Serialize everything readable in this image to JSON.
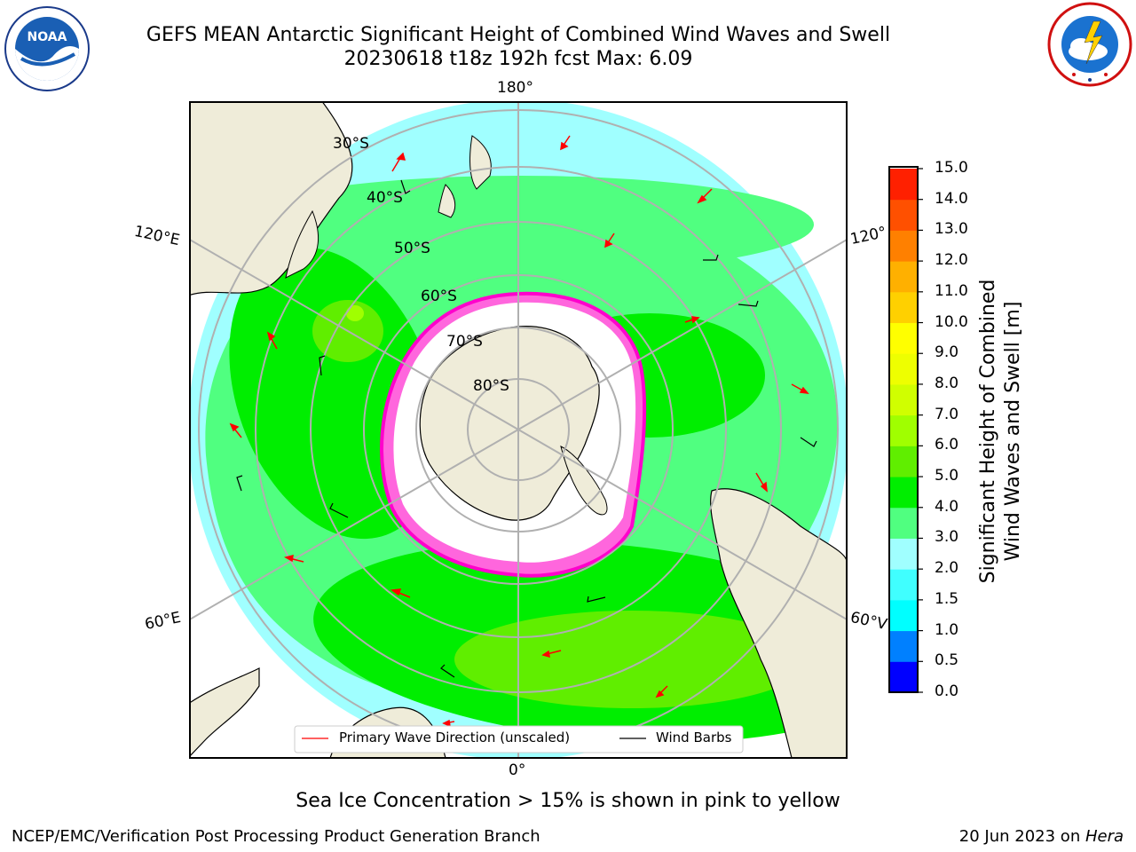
{
  "header": {
    "title_line1": "GEFS MEAN Antarctic Significant Height of Combined Wind Waves and Swell",
    "title_line2": "20230618 t18z 192h fcst   Max: 6.09"
  },
  "logos": {
    "left": {
      "text": "NOAA",
      "ring_text": "NATIONAL OCEANIC AND ATMOSPHERIC ADMINISTRATION · U.S. DEPARTMENT OF COMMERCE"
    },
    "right": {
      "ring_text": "NATIONAL WEATHER SERVICE"
    }
  },
  "map": {
    "lon_labels": {
      "top": "180°",
      "bottom": "0°",
      "upper_left": "120°E",
      "upper_right": "120°",
      "lower_left": "60°E",
      "lower_right": "60°V"
    },
    "lat_labels": [
      "30°S",
      "40°S",
      "50°S",
      "60°S",
      "70°S",
      "80°S"
    ],
    "legend": {
      "wave_direction": "Primary Wave Direction (unscaled)",
      "wind_barbs": "Wind Barbs"
    },
    "colors": {
      "land": "#efecd9",
      "ice": "#ffffff",
      "ocean_frame": "#ffffff"
    }
  },
  "colorbar": {
    "ticks": [
      "0.0",
      "0.5",
      "1.0",
      "1.5",
      "2.0",
      "3.0",
      "4.0",
      "5.0",
      "6.0",
      "7.0",
      "8.0",
      "9.0",
      "10.0",
      "11.0",
      "12.0",
      "13.0",
      "14.0",
      "15.0"
    ],
    "colors": [
      "#0000ff",
      "#0080ff",
      "#00ffff",
      "#40ffff",
      "#a0ffff",
      "#50ff80",
      "#00ee00",
      "#60ee00",
      "#a0ff00",
      "#d0ff00",
      "#eeff00",
      "#ffff00",
      "#ffd000",
      "#ffb000",
      "#ff8000",
      "#ff5000",
      "#ff2000"
    ],
    "label_line1": "Significant Height of Combined",
    "label_line2": "Wind Waves and Swell [m]"
  },
  "notes": {
    "ice": "Sea Ice Concentration > 15% is shown in pink to yellow"
  },
  "footer": {
    "left": "NCEP/EMC/Verification Post Processing Product Generation Branch",
    "date": "20 Jun 2023 on ",
    "machine": "Hera"
  }
}
